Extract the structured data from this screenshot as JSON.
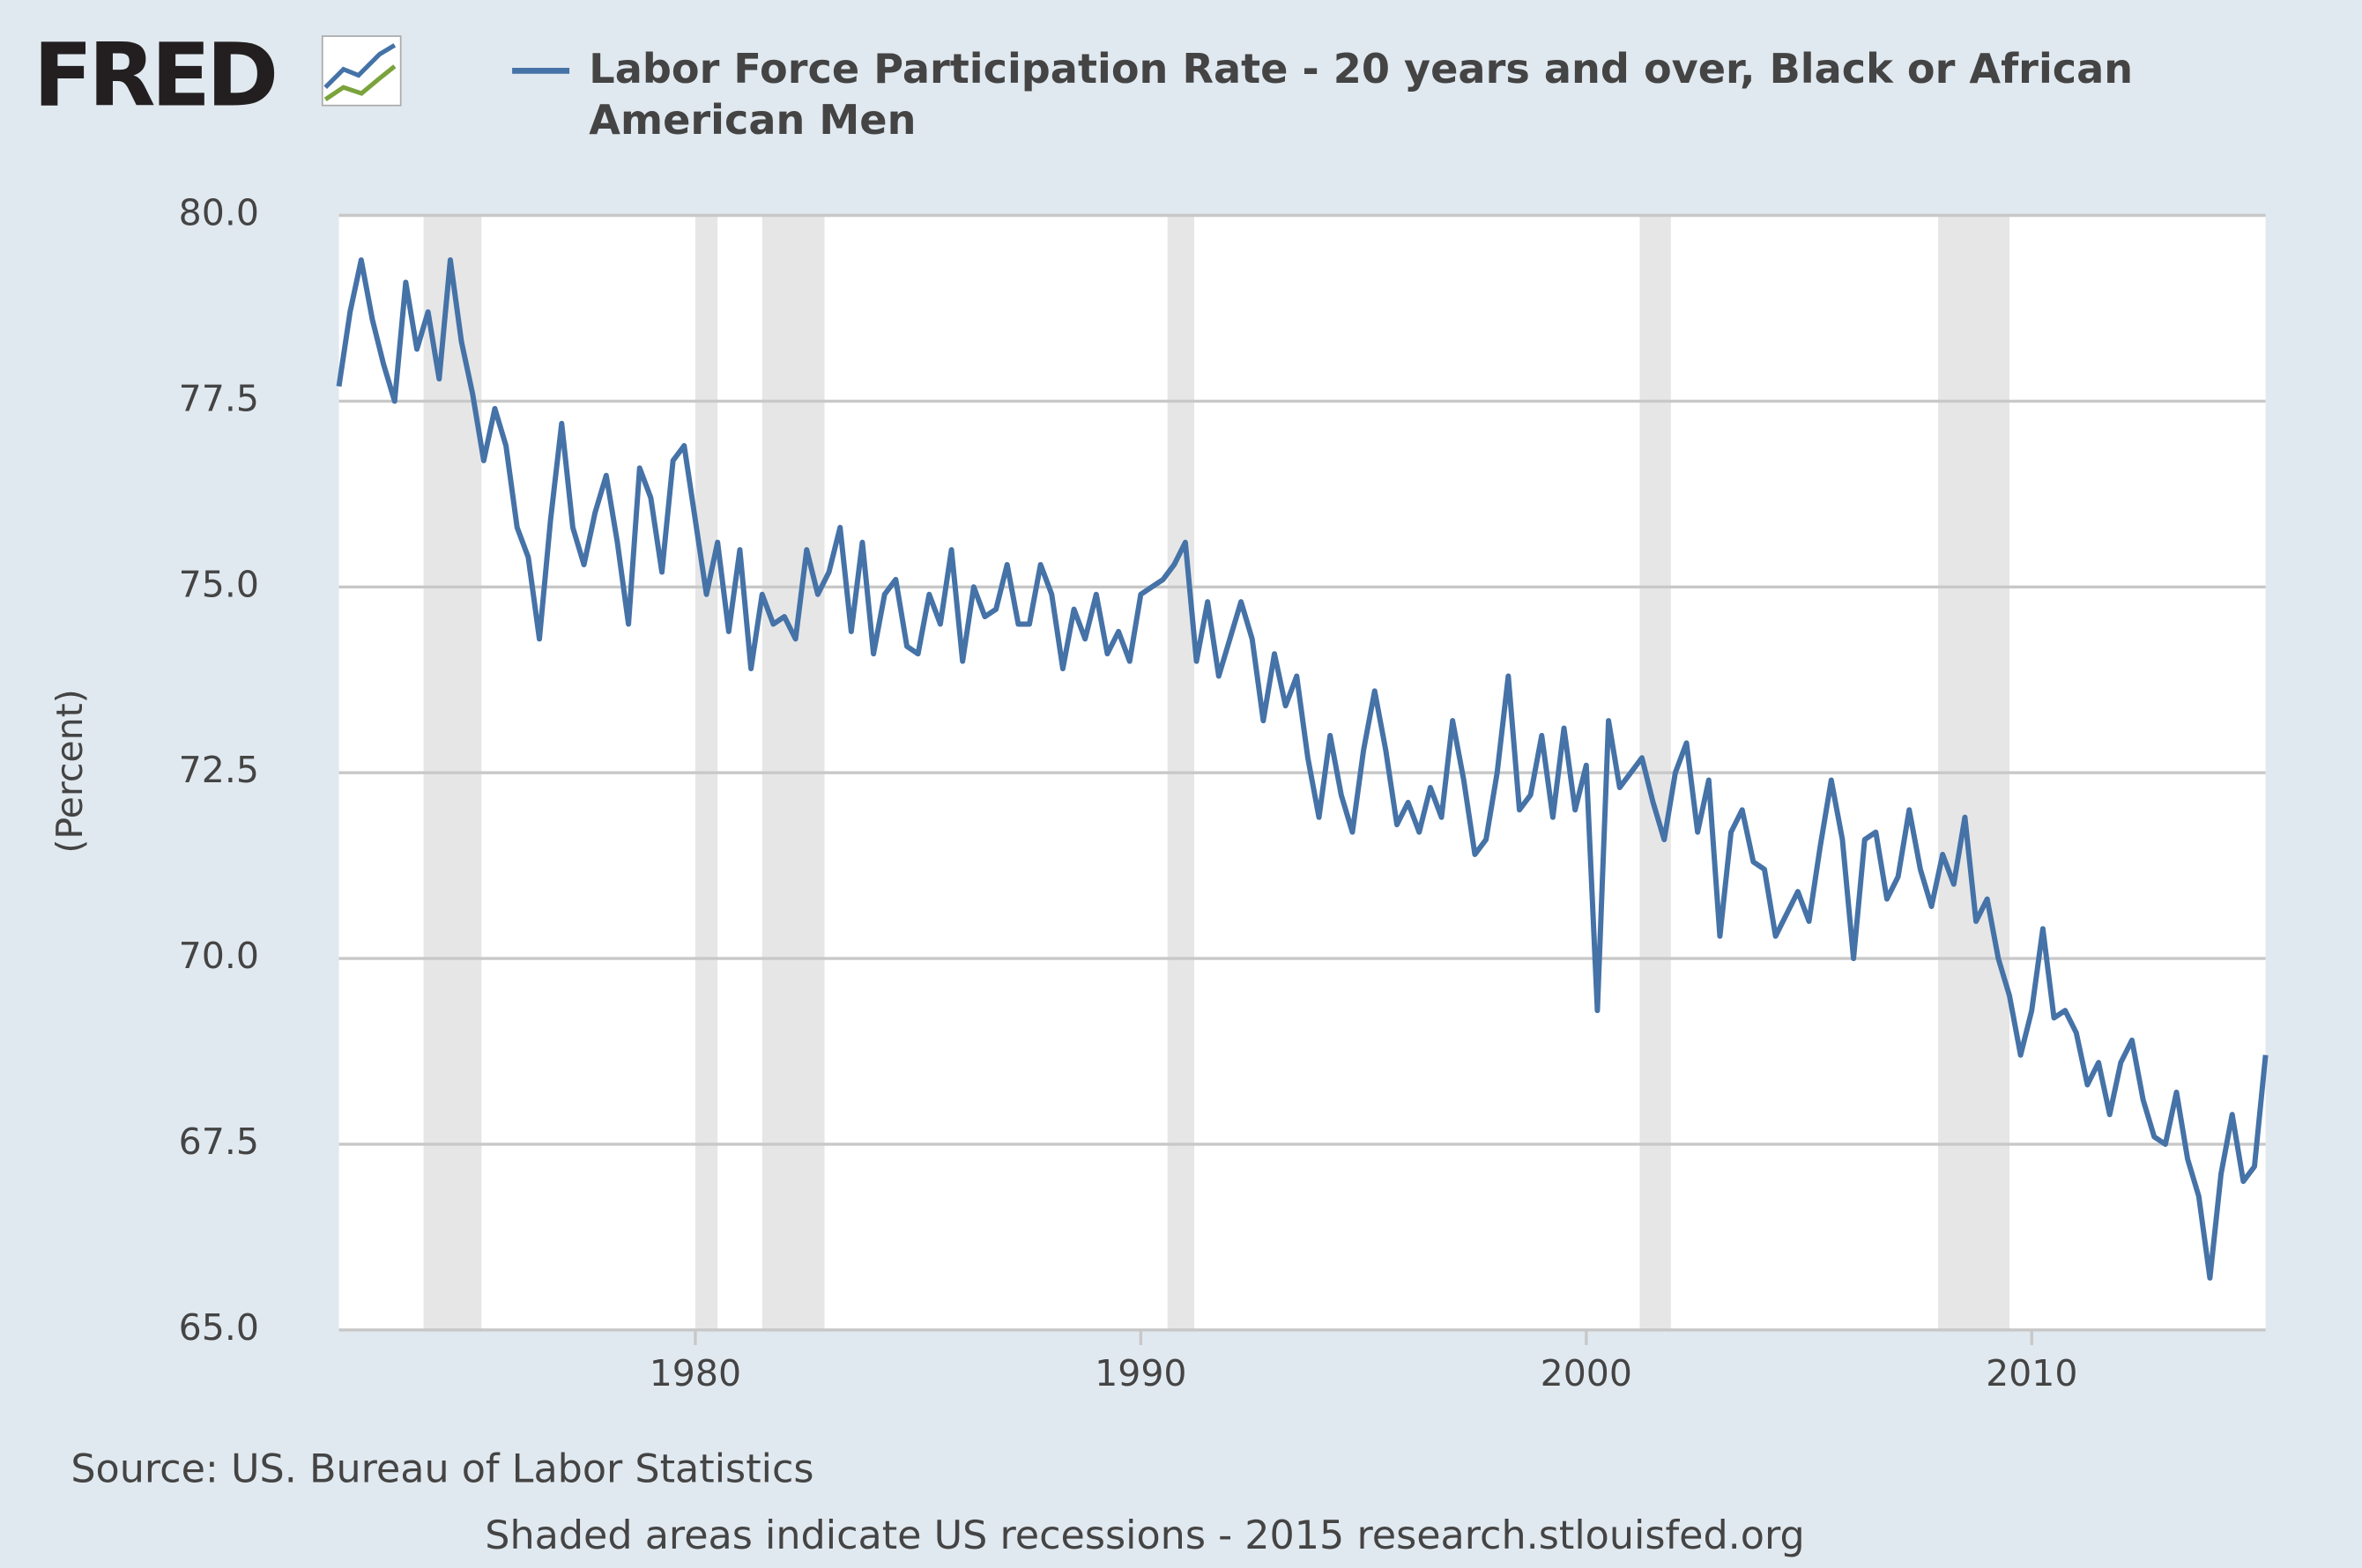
{
  "logo": "FRED",
  "chart_data": {
    "type": "line",
    "title": "Labor Force Participation Rate - 20 years and over, Black or African American Men",
    "ylabel": "(Percent)",
    "source": "Source: US. Bureau of Labor Statistics",
    "footer": "Shaded areas indicate US recessions - 2015 research.stlouisfed.org",
    "xlim": [
      1972,
      2015.25
    ],
    "ylim": [
      65,
      80
    ],
    "xticks": [
      1980,
      1990,
      2000,
      2010
    ],
    "yticks": [
      {
        "value": 65,
        "label": "65.0"
      },
      {
        "value": 67.5,
        "label": "67.5"
      },
      {
        "value": 70,
        "label": "70.0"
      },
      {
        "value": 72.5,
        "label": "72.5"
      },
      {
        "value": 75,
        "label": "75.0"
      },
      {
        "value": 77.5,
        "label": "77.5"
      },
      {
        "value": 80,
        "label": "80.0"
      }
    ],
    "grid": true,
    "recessions": [
      [
        1973.9,
        1975.2
      ],
      [
        1980.0,
        1980.5
      ],
      [
        1981.5,
        1982.9
      ],
      [
        1990.6,
        1991.2
      ],
      [
        2001.2,
        2001.9
      ],
      [
        2007.9,
        2009.5
      ]
    ],
    "x": [
      1972,
      1972.25,
      1972.5,
      1972.75,
      1973,
      1973.25,
      1973.5,
      1973.75,
      1974,
      1974.25,
      1974.5,
      1974.75,
      1975,
      1975.25,
      1975.5,
      1975.75,
      1976,
      1976.25,
      1976.5,
      1976.75,
      1977,
      1977.25,
      1977.5,
      1977.75,
      1978,
      1978.25,
      1978.5,
      1978.75,
      1979,
      1979.25,
      1979.5,
      1979.75,
      1980,
      1980.25,
      1980.5,
      1980.75,
      1981,
      1981.25,
      1981.5,
      1981.75,
      1982,
      1982.25,
      1982.5,
      1982.75,
      1983,
      1983.25,
      1983.5,
      1983.75,
      1984,
      1984.25,
      1984.5,
      1984.75,
      1985,
      1985.25,
      1985.5,
      1985.75,
      1986,
      1986.25,
      1986.5,
      1986.75,
      1987,
      1987.25,
      1987.5,
      1987.75,
      1988,
      1988.25,
      1988.5,
      1988.75,
      1989,
      1989.25,
      1989.5,
      1989.75,
      1990,
      1990.25,
      1990.5,
      1990.75,
      1991,
      1991.25,
      1991.5,
      1991.75,
      1992,
      1992.25,
      1992.5,
      1992.75,
      1993,
      1993.25,
      1993.5,
      1993.75,
      1994,
      1994.25,
      1994.5,
      1994.75,
      1995,
      1995.25,
      1995.5,
      1995.75,
      1996,
      1996.25,
      1996.5,
      1996.75,
      1997,
      1997.25,
      1997.5,
      1997.75,
      1998,
      1998.25,
      1998.5,
      1998.75,
      1999,
      1999.25,
      1999.5,
      1999.75,
      2000,
      2000.25,
      2000.5,
      2000.75,
      2001,
      2001.25,
      2001.5,
      2001.75,
      2002,
      2002.25,
      2002.5,
      2002.75,
      2003,
      2003.25,
      2003.5,
      2003.75,
      2004,
      2004.25,
      2004.5,
      2004.75,
      2005,
      2005.25,
      2005.5,
      2005.75,
      2006,
      2006.25,
      2006.5,
      2006.75,
      2007,
      2007.25,
      2007.5,
      2007.75,
      2008,
      2008.25,
      2008.5,
      2008.75,
      2009,
      2009.25,
      2009.5,
      2009.75,
      2010,
      2010.25,
      2010.5,
      2010.75,
      2011,
      2011.25,
      2011.5,
      2011.75,
      2012,
      2012.25,
      2012.5,
      2012.75,
      2013,
      2013.25,
      2013.5,
      2013.75,
      2014,
      2014.25,
      2014.5,
      2014.75,
      2015,
      2015.25
    ],
    "series": [
      {
        "name": "Labor Force Participation Rate - 20 years and over, Black or African American Men",
        "color": "#4572a7",
        "values": [
          77.7,
          78.7,
          79.4,
          78.6,
          78.0,
          77.5,
          79.1,
          78.2,
          78.7,
          77.8,
          79.4,
          78.3,
          77.6,
          76.7,
          77.4,
          76.9,
          75.8,
          75.4,
          74.3,
          75.9,
          77.2,
          75.8,
          75.3,
          76.0,
          76.5,
          75.6,
          74.5,
          76.6,
          76.2,
          75.2,
          76.7,
          76.9,
          75.9,
          74.9,
          75.6,
          74.4,
          75.5,
          73.9,
          74.9,
          74.5,
          74.6,
          74.3,
          75.5,
          74.9,
          75.2,
          75.8,
          74.4,
          75.6,
          74.1,
          74.9,
          75.1,
          74.2,
          74.1,
          74.9,
          74.5,
          75.5,
          74.0,
          75.0,
          74.6,
          74.7,
          75.3,
          74.5,
          74.5,
          75.3,
          74.9,
          73.9,
          74.7,
          74.3,
          74.9,
          74.1,
          74.4,
          74.0,
          74.9,
          75.0,
          75.1,
          75.3,
          75.6,
          74.0,
          74.8,
          73.8,
          74.3,
          74.8,
          74.3,
          73.2,
          74.1,
          73.4,
          73.8,
          72.7,
          71.9,
          73.0,
          72.2,
          71.7,
          72.8,
          73.6,
          72.8,
          71.8,
          72.1,
          71.7,
          72.3,
          71.9,
          73.2,
          72.4,
          71.4,
          71.6,
          72.5,
          73.8,
          72.0,
          72.2,
          73.0,
          71.9,
          73.1,
          72.0,
          72.6,
          69.3,
          73.2,
          72.3,
          72.5,
          72.7,
          72.1,
          71.6,
          72.5,
          72.9,
          71.7,
          72.4,
          70.3,
          71.7,
          72.0,
          71.3,
          71.2,
          70.3,
          70.6,
          70.9,
          70.5,
          71.5,
          72.4,
          71.6,
          70.0,
          71.6,
          71.7,
          70.8,
          71.1,
          72.0,
          71.2,
          70.7,
          71.4,
          71.0,
          71.9,
          70.5,
          70.8,
          70.0,
          69.5,
          68.7,
          69.3,
          70.4,
          69.2,
          69.3,
          69.0,
          68.3,
          68.6,
          67.9,
          68.6,
          68.9,
          68.1,
          67.6,
          67.5,
          68.2,
          67.3,
          66.8,
          65.7,
          67.1,
          67.9,
          67.0,
          67.2,
          68.7
        ]
      }
    ]
  }
}
